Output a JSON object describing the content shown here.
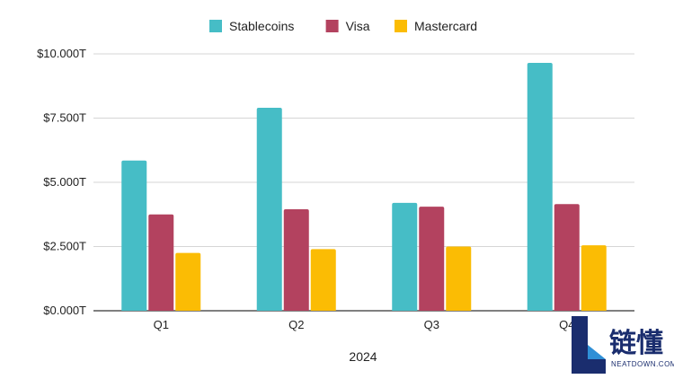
{
  "chart_data": {
    "type": "bar",
    "title": "",
    "xlabel": "2024",
    "ylabel": "",
    "categories": [
      "Q1",
      "Q2",
      "Q3",
      "Q4"
    ],
    "series": [
      {
        "name": "Stablecoins",
        "color": "#46bdc6",
        "values": [
          5.85,
          7.9,
          4.2,
          9.65
        ]
      },
      {
        "name": "Visa",
        "color": "#b3425f",
        "values": [
          3.75,
          3.95,
          4.05,
          4.15
        ]
      },
      {
        "name": "Mastercard",
        "color": "#fbbc04",
        "values": [
          2.25,
          2.4,
          2.5,
          2.55
        ]
      }
    ],
    "ylim": [
      0,
      10
    ],
    "yticks": [
      0,
      2.5,
      5,
      7.5,
      10
    ],
    "ytick_labels": [
      "$0.000T",
      "$2.500T",
      "$5.000T",
      "$7.500T",
      "$10.000T"
    ],
    "grid": true,
    "legend_position": "top-center"
  },
  "watermark": {
    "text_cn": "链懂",
    "text_en": "NEATDOWN.COM",
    "color": "#1a2d6e",
    "accent": "#2f8fd6"
  }
}
